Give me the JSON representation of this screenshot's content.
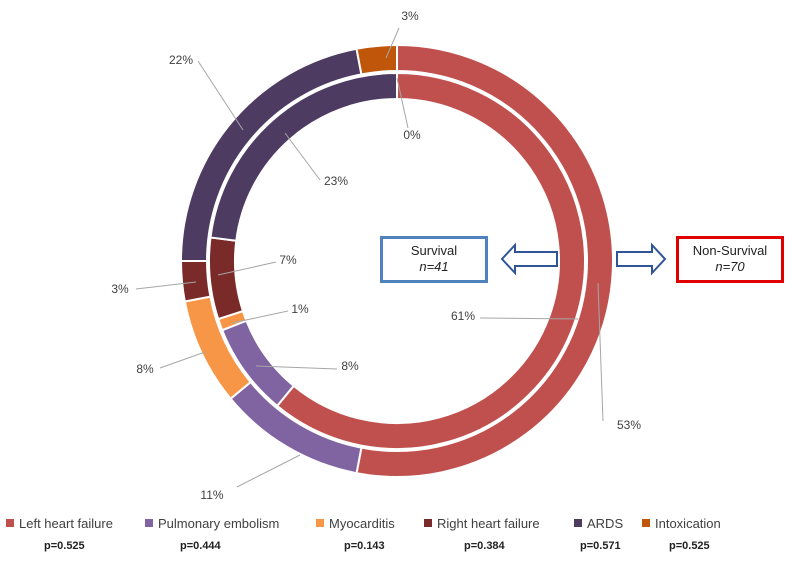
{
  "chart_data": {
    "type": "pie",
    "variant": "double-donut",
    "categories": [
      "Left heart failure",
      "Pulmonary embolism",
      "Myocarditis",
      "Right heart failure",
      "ARDS",
      "Intoxication"
    ],
    "colors": [
      "#c0504d",
      "#8064a2",
      "#f79646",
      "#7b2a2a",
      "#4d3b62",
      "#c0560a"
    ],
    "series": [
      {
        "ring": "outer",
        "values": [
          53,
          11,
          8,
          3,
          22,
          3
        ],
        "labels": [
          "53%",
          "11%",
          "8%",
          "3%",
          "22%",
          "3%"
        ]
      },
      {
        "ring": "inner",
        "values": [
          61,
          8,
          1,
          7,
          23,
          0
        ],
        "labels": [
          "61%",
          "8%",
          "1%",
          "7%",
          "23%",
          "0%"
        ]
      }
    ],
    "legend_position": "bottom",
    "p_values": [
      "p=0.525",
      "p=0.444",
      "p=0.143",
      "p=0.384",
      "p=0.571",
      "p=0.525"
    ]
  },
  "annotations": {
    "survival": {
      "title": "Survival",
      "n": "n=41",
      "ring": "inner"
    },
    "non_survival": {
      "title": "Non-Survival",
      "n": "n=70",
      "ring": "outer"
    }
  }
}
